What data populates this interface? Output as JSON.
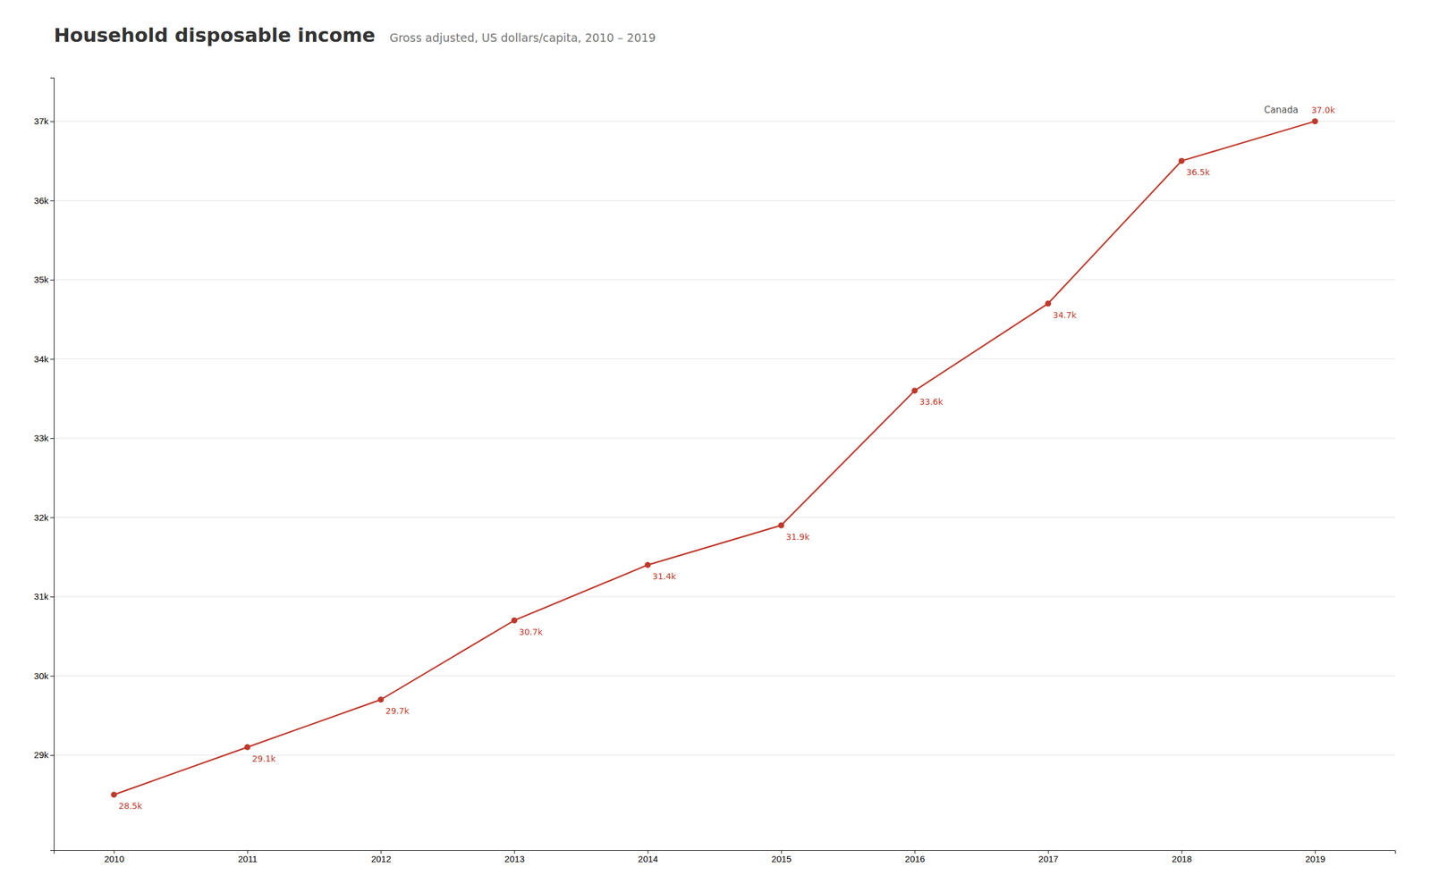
{
  "chart_data": {
    "type": "line",
    "title": "Household disposable income",
    "subtitle": "Gross adjusted, US dollars/capita, 2010 – 2019",
    "x": [
      2010,
      2011,
      2012,
      2013,
      2014,
      2015,
      2016,
      2017,
      2018,
      2019
    ],
    "series": [
      {
        "name": "Canada",
        "color": "#c0392b",
        "marker": "circle",
        "values": [
          28500,
          29100,
          29700,
          30700,
          31400,
          31900,
          33600,
          34700,
          36500,
          37000
        ],
        "value_labels": [
          "28.5k",
          "29.1k",
          "29.7k",
          "30.7k",
          "31.4k",
          "31.9k",
          "33.6k",
          "34.7k",
          "36.5k",
          "37.0k"
        ]
      }
    ],
    "xlim": [
      2009.55,
      2019.6
    ],
    "xticks": [
      2010,
      2011,
      2012,
      2013,
      2014,
      2015,
      2016,
      2017,
      2018,
      2019
    ],
    "ylim": [
      27800,
      37550
    ],
    "yticks": [
      {
        "value": 29000,
        "label": "29k"
      },
      {
        "value": 30000,
        "label": "30k"
      },
      {
        "value": 31000,
        "label": "31k"
      },
      {
        "value": 32000,
        "label": "32k"
      },
      {
        "value": 33000,
        "label": "33k"
      },
      {
        "value": 34000,
        "label": "34k"
      },
      {
        "value": 35000,
        "label": "35k"
      },
      {
        "value": 36000,
        "label": "36k"
      },
      {
        "value": 37000,
        "label": "37k"
      }
    ],
    "grid": true,
    "data_labels": true
  }
}
